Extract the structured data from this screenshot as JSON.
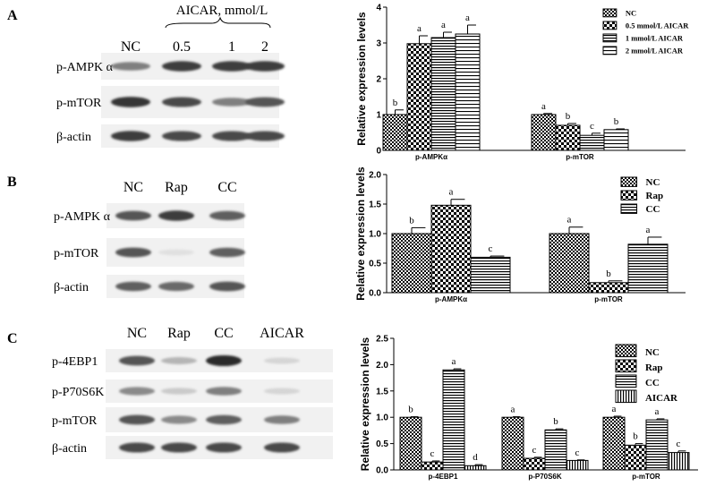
{
  "panels": [
    {
      "letter": "A",
      "blot": {
        "header": "AICAR, mmol/L",
        "lanes": [
          "NC",
          "0.5",
          "1",
          "2"
        ],
        "rows": [
          "p-AMPK α",
          "p-mTOR",
          "β-actin"
        ],
        "intensity": [
          [
            0.55,
            0.85,
            0.85,
            0.85
          ],
          [
            0.9,
            0.8,
            0.55,
            0.75
          ],
          [
            0.85,
            0.8,
            0.8,
            0.8
          ]
        ]
      }
    },
    {
      "letter": "B",
      "blot": {
        "header": "",
        "lanes": [
          "NC",
          "Rap",
          "CC"
        ],
        "rows": [
          "p-AMPK α",
          "p-mTOR",
          "β-actin"
        ],
        "intensity": [
          [
            0.75,
            0.85,
            0.7
          ],
          [
            0.75,
            0.1,
            0.7
          ],
          [
            0.7,
            0.65,
            0.75
          ]
        ]
      }
    },
    {
      "letter": "C",
      "blot": {
        "header": "",
        "lanes": [
          "NC",
          "Rap",
          "CC",
          "AICAR"
        ],
        "rows": [
          "p-4EBP1",
          "p-P70S6K",
          "p-mTOR",
          "β-actin"
        ],
        "intensity": [
          [
            0.75,
            0.3,
            0.95,
            0.15
          ],
          [
            0.5,
            0.2,
            0.55,
            0.15
          ],
          [
            0.75,
            0.5,
            0.7,
            0.55
          ],
          [
            0.8,
            0.8,
            0.8,
            0.8
          ]
        ]
      }
    }
  ],
  "chart_data": [
    {
      "type": "bar",
      "ylabel": "Relative expression levels",
      "ylim": [
        0,
        4
      ],
      "yticks": [
        0,
        1,
        2,
        3,
        4
      ],
      "categories": [
        "p-AMPKα",
        "p-mTOR"
      ],
      "legend_position": "top-right",
      "series": [
        {
          "name": "NC",
          "pattern": "dense-check",
          "values": [
            1.0,
            1.0
          ],
          "errors": [
            0.13,
            0.03
          ],
          "letters": [
            "b",
            "a"
          ]
        },
        {
          "name": "0.5 mmol/L AICAR",
          "pattern": "check",
          "values": [
            2.98,
            0.7
          ],
          "errors": [
            0.22,
            0.05
          ],
          "letters": [
            "a",
            "b"
          ]
        },
        {
          "name": "1 mmol/L AICAR",
          "pattern": "horizontal",
          "values": [
            3.15,
            0.42
          ],
          "errors": [
            0.15,
            0.06
          ],
          "letters": [
            "a",
            "c"
          ]
        },
        {
          "name": "2 mmol/L AICAR",
          "pattern": "horizontal-sparse",
          "values": [
            3.25,
            0.58
          ],
          "errors": [
            0.25,
            0.02
          ],
          "letters": [
            "a",
            "b"
          ]
        }
      ]
    },
    {
      "type": "bar",
      "ylabel": "Relative expression levels",
      "ylim": [
        0,
        2.0
      ],
      "yticks": [
        0,
        0.5,
        1.0,
        1.5,
        2.0
      ],
      "categories": [
        "p-AMPKα",
        "p-mTOR"
      ],
      "legend_position": "top-right",
      "series": [
        {
          "name": "NC",
          "pattern": "dense-check",
          "values": [
            1.0,
            1.0
          ],
          "errors": [
            0.1,
            0.11
          ],
          "letters": [
            "b",
            "a"
          ]
        },
        {
          "name": "Rap",
          "pattern": "check",
          "values": [
            1.48,
            0.17
          ],
          "errors": [
            0.1,
            0.03
          ],
          "letters": [
            "a",
            "b"
          ]
        },
        {
          "name": "CC",
          "pattern": "horizontal",
          "values": [
            0.6,
            0.82
          ],
          "errors": [
            0.02,
            0.12
          ],
          "letters": [
            "c",
            "a"
          ]
        }
      ]
    },
    {
      "type": "bar",
      "ylabel": "Relative expression levels",
      "ylim": [
        0,
        2.5
      ],
      "yticks": [
        0,
        0.5,
        1.0,
        1.5,
        2.0,
        2.5
      ],
      "categories": [
        "p-4EBP1",
        "p-P70S6K",
        "p-mTOR"
      ],
      "legend_position": "top-right",
      "series": [
        {
          "name": "NC",
          "pattern": "dense-check",
          "values": [
            1.0,
            1.0,
            1.0
          ],
          "errors": [
            0.01,
            0.01,
            0.02
          ],
          "letters": [
            "b",
            "a",
            "a"
          ]
        },
        {
          "name": "Rap",
          "pattern": "check",
          "values": [
            0.15,
            0.22,
            0.47
          ],
          "errors": [
            0.02,
            0.02,
            0.03
          ],
          "letters": [
            "c",
            "c",
            "b"
          ]
        },
        {
          "name": "CC",
          "pattern": "horizontal",
          "values": [
            1.9,
            0.76,
            0.95
          ],
          "errors": [
            0.02,
            0.02,
            0.02
          ],
          "letters": [
            "a",
            "b",
            "a"
          ]
        },
        {
          "name": "AICAR",
          "pattern": "vertical",
          "values": [
            0.08,
            0.18,
            0.33
          ],
          "errors": [
            0.02,
            0.01,
            0.03
          ],
          "letters": [
            "d",
            "c",
            "c"
          ]
        }
      ]
    }
  ]
}
